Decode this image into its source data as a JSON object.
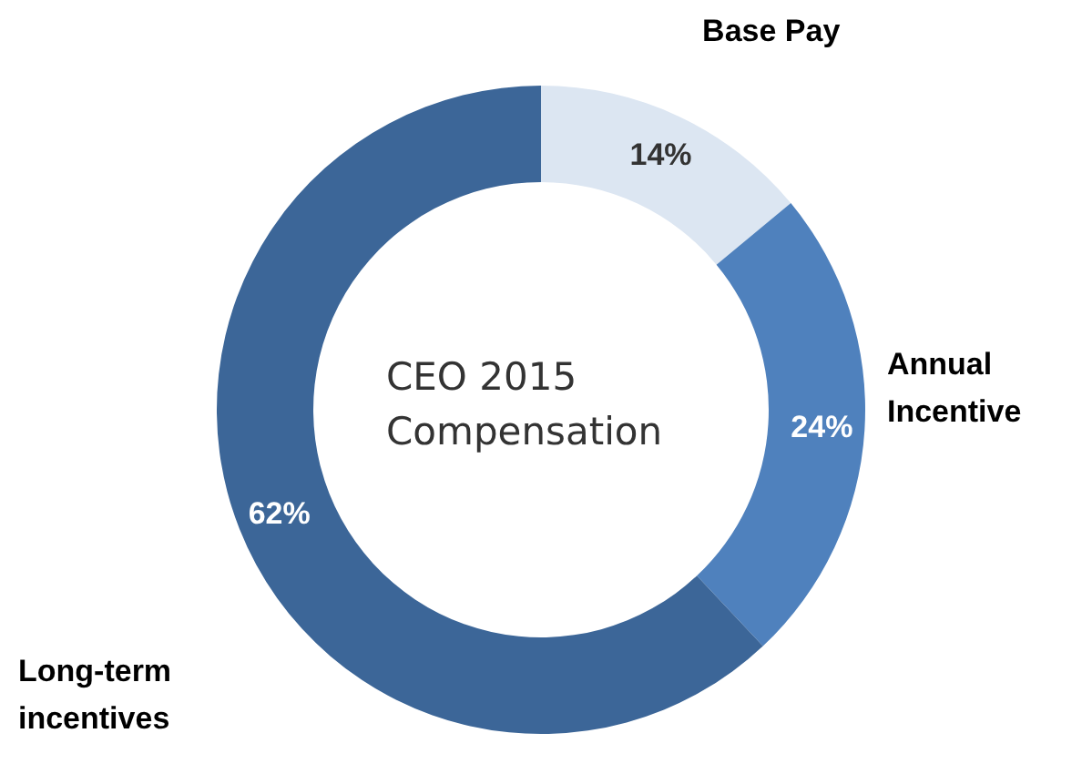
{
  "chart_data": {
    "type": "donut",
    "title": "CEO 2015 Compensation",
    "categories": [
      "Base Pay",
      "Annual Incentive",
      "Long-term incentives"
    ],
    "values": [
      14,
      24,
      62
    ],
    "colors": [
      "#dce6f2",
      "#4f81bd",
      "#3c6698"
    ],
    "value_labels": [
      "14%",
      "24%",
      "62%"
    ],
    "legend": false
  }
}
